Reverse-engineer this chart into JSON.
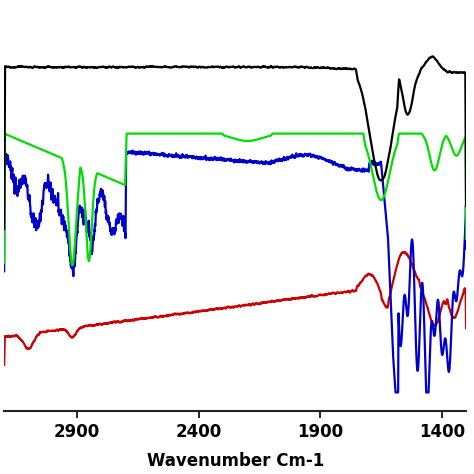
{
  "xlabel": "Wavenumber Cm-1",
  "xlabel_fontsize": 12,
  "xlabel_fontweight": "bold",
  "xlim": [
    3200,
    1300
  ],
  "ylim": [
    -0.05,
    1.05
  ],
  "background_color": "#ffffff",
  "linewidth": 1.6,
  "colors": {
    "black": "#000000",
    "green": "#00dd00",
    "blue": "#0000cc",
    "red": "#cc0000"
  },
  "xticks": [
    2900,
    2400,
    1900,
    1400
  ],
  "tick_fontsize": 12,
  "tick_fontweight": "bold"
}
